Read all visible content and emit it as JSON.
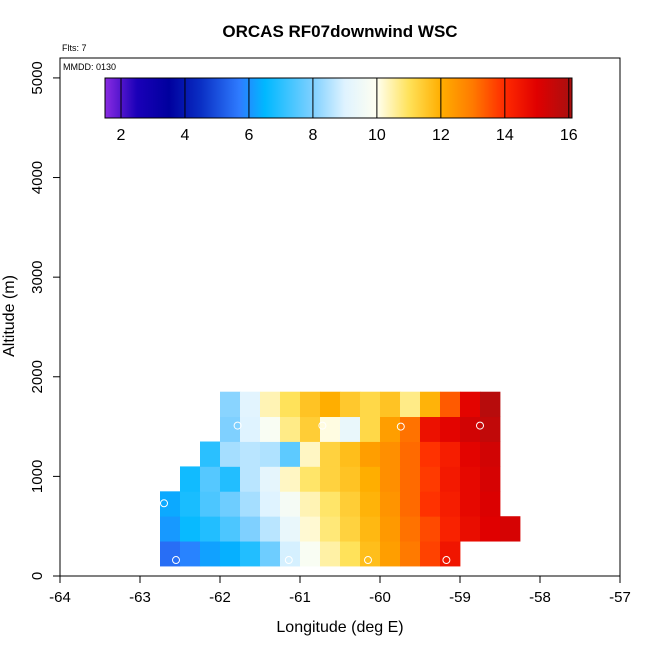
{
  "chart_data": {
    "type": "heatmap",
    "title": "ORCAS RF07downwind WSC",
    "annotations": {
      "flights": "Flts: 7",
      "date": "MMDD: 0130"
    },
    "xlabel": "Longitude (deg E)",
    "ylabel": "Altitude (m)",
    "xlim": [
      -64,
      -57
    ],
    "ylim": [
      0,
      5200
    ],
    "xticks": [
      -64,
      -63,
      -62,
      -61,
      -60,
      -59,
      -58,
      -57
    ],
    "yticks": [
      0,
      1000,
      2000,
      3000,
      4000,
      5000
    ],
    "colorbar": {
      "min": 1.5,
      "max": 16.1,
      "ticks": [
        2,
        4,
        6,
        8,
        10,
        12,
        14,
        16
      ],
      "stops": [
        {
          "v": 1.5,
          "c": "#8a2be2"
        },
        {
          "v": 2.5,
          "c": "#1a00b8"
        },
        {
          "v": 3.5,
          "c": "#00009e"
        },
        {
          "v": 4.5,
          "c": "#0a2fc4"
        },
        {
          "v": 5.7,
          "c": "#2e7bff"
        },
        {
          "v": 6.5,
          "c": "#00b8ff"
        },
        {
          "v": 8.0,
          "c": "#7fd0ff"
        },
        {
          "v": 9.0,
          "c": "#dff3ff"
        },
        {
          "v": 10.0,
          "c": "#fffff0"
        },
        {
          "v": 11.0,
          "c": "#ffe25a"
        },
        {
          "v": 12.0,
          "c": "#ffae00"
        },
        {
          "v": 13.0,
          "c": "#ff7a00"
        },
        {
          "v": 14.0,
          "c": "#ff2a00"
        },
        {
          "v": 15.0,
          "c": "#e00000"
        },
        {
          "v": 16.1,
          "c": "#a81010"
        }
      ]
    },
    "grid": {
      "x0": -62.75,
      "dx": 0.25,
      "y0": 100,
      "dy": 250
    },
    "cells": [
      {
        "x": -62.75,
        "y": 100,
        "v": 5.5
      },
      {
        "x": -62.5,
        "y": 100,
        "v": 5.8
      },
      {
        "x": -62.25,
        "y": 100,
        "v": 6.2
      },
      {
        "x": -62.0,
        "y": 100,
        "v": 6.4
      },
      {
        "x": -61.75,
        "y": 100,
        "v": 6.9
      },
      {
        "x": -61.5,
        "y": 100,
        "v": 7.8
      },
      {
        "x": -61.25,
        "y": 100,
        "v": 8.9
      },
      {
        "x": -61.0,
        "y": 100,
        "v": 9.8
      },
      {
        "x": -60.75,
        "y": 100,
        "v": 10.5
      },
      {
        "x": -60.5,
        "y": 100,
        "v": 11.0
      },
      {
        "x": -60.25,
        "y": 100,
        "v": 11.7
      },
      {
        "x": -60.0,
        "y": 100,
        "v": 12.3
      },
      {
        "x": -59.75,
        "y": 100,
        "v": 13.0
      },
      {
        "x": -59.5,
        "y": 100,
        "v": 13.7
      },
      {
        "x": -59.25,
        "y": 100,
        "v": 14.5
      },
      {
        "x": -62.75,
        "y": 350,
        "v": 6.1
      },
      {
        "x": -62.5,
        "y": 350,
        "v": 6.6
      },
      {
        "x": -62.25,
        "y": 350,
        "v": 6.9
      },
      {
        "x": -62.0,
        "y": 350,
        "v": 7.4
      },
      {
        "x": -61.75,
        "y": 350,
        "v": 8.0
      },
      {
        "x": -61.5,
        "y": 350,
        "v": 8.6
      },
      {
        "x": -61.25,
        "y": 350,
        "v": 9.3
      },
      {
        "x": -61.0,
        "y": 350,
        "v": 10.2
      },
      {
        "x": -60.75,
        "y": 350,
        "v": 10.8
      },
      {
        "x": -60.5,
        "y": 350,
        "v": 11.3
      },
      {
        "x": -60.25,
        "y": 350,
        "v": 11.8
      },
      {
        "x": -60.0,
        "y": 350,
        "v": 12.4
      },
      {
        "x": -59.75,
        "y": 350,
        "v": 13.1
      },
      {
        "x": -59.5,
        "y": 350,
        "v": 13.6
      },
      {
        "x": -59.25,
        "y": 350,
        "v": 14.2
      },
      {
        "x": -59.0,
        "y": 350,
        "v": 14.7
      },
      {
        "x": -58.75,
        "y": 350,
        "v": 15.0
      },
      {
        "x": -58.5,
        "y": 350,
        "v": 15.2
      },
      {
        "x": -62.75,
        "y": 600,
        "v": 6.3
      },
      {
        "x": -62.5,
        "y": 600,
        "v": 6.8
      },
      {
        "x": -62.25,
        "y": 600,
        "v": 7.4
      },
      {
        "x": -62.0,
        "y": 600,
        "v": 7.8
      },
      {
        "x": -61.75,
        "y": 600,
        "v": 8.4
      },
      {
        "x": -61.5,
        "y": 600,
        "v": 9.0
      },
      {
        "x": -61.25,
        "y": 600,
        "v": 9.7
      },
      {
        "x": -61.0,
        "y": 600,
        "v": 10.4
      },
      {
        "x": -60.75,
        "y": 600,
        "v": 10.9
      },
      {
        "x": -60.5,
        "y": 600,
        "v": 11.4
      },
      {
        "x": -60.25,
        "y": 600,
        "v": 11.9
      },
      {
        "x": -60.0,
        "y": 600,
        "v": 12.5
      },
      {
        "x": -59.75,
        "y": 600,
        "v": 13.2
      },
      {
        "x": -59.5,
        "y": 600,
        "v": 13.9
      },
      {
        "x": -59.25,
        "y": 600,
        "v": 14.3
      },
      {
        "x": -59.0,
        "y": 600,
        "v": 14.8
      },
      {
        "x": -58.75,
        "y": 600,
        "v": 15.1
      },
      {
        "x": -62.5,
        "y": 850,
        "v": 6.7
      },
      {
        "x": -62.25,
        "y": 850,
        "v": 7.5
      },
      {
        "x": -62.0,
        "y": 850,
        "v": 6.9
      },
      {
        "x": -61.75,
        "y": 850,
        "v": 8.6
      },
      {
        "x": -61.5,
        "y": 850,
        "v": 9.2
      },
      {
        "x": -61.25,
        "y": 850,
        "v": 10.3
      },
      {
        "x": -61.0,
        "y": 850,
        "v": 10.9
      },
      {
        "x": -60.75,
        "y": 850,
        "v": 11.3
      },
      {
        "x": -60.5,
        "y": 850,
        "v": 11.6
      },
      {
        "x": -60.25,
        "y": 850,
        "v": 12.0
      },
      {
        "x": -60.0,
        "y": 850,
        "v": 12.6
      },
      {
        "x": -59.75,
        "y": 850,
        "v": 13.2
      },
      {
        "x": -59.5,
        "y": 850,
        "v": 13.8
      },
      {
        "x": -59.25,
        "y": 850,
        "v": 14.4
      },
      {
        "x": -59.0,
        "y": 850,
        "v": 14.8
      },
      {
        "x": -58.75,
        "y": 850,
        "v": 15.2
      },
      {
        "x": -62.25,
        "y": 1100,
        "v": 7.0
      },
      {
        "x": -62.0,
        "y": 1100,
        "v": 8.4
      },
      {
        "x": -61.75,
        "y": 1100,
        "v": 8.6
      },
      {
        "x": -61.5,
        "y": 1100,
        "v": 8.5
      },
      {
        "x": -61.25,
        "y": 1100,
        "v": 7.6
      },
      {
        "x": -61.0,
        "y": 1100,
        "v": 10.3
      },
      {
        "x": -60.75,
        "y": 1100,
        "v": 11.3
      },
      {
        "x": -60.5,
        "y": 1100,
        "v": 11.7
      },
      {
        "x": -60.25,
        "y": 1100,
        "v": 12.3
      },
      {
        "x": -60.0,
        "y": 1100,
        "v": 12.6
      },
      {
        "x": -59.75,
        "y": 1100,
        "v": 13.2
      },
      {
        "x": -59.5,
        "y": 1100,
        "v": 13.9
      },
      {
        "x": -59.25,
        "y": 1100,
        "v": 14.3
      },
      {
        "x": -59.0,
        "y": 1100,
        "v": 14.9
      },
      {
        "x": -58.75,
        "y": 1100,
        "v": 15.3
      },
      {
        "x": -62.0,
        "y": 1350,
        "v": 8.0
      },
      {
        "x": -61.75,
        "y": 1350,
        "v": 9.0
      },
      {
        "x": -61.5,
        "y": 1350,
        "v": 9.8
      },
      {
        "x": -61.25,
        "y": 1350,
        "v": 10.7
      },
      {
        "x": -61.0,
        "y": 1350,
        "v": 11.4
      },
      {
        "x": -60.75,
        "y": 1350,
        "v": 10.1
      },
      {
        "x": -60.5,
        "y": 1350,
        "v": 9.3
      },
      {
        "x": -60.25,
        "y": 1350,
        "v": 11.2
      },
      {
        "x": -60.0,
        "y": 1350,
        "v": 12.3
      },
      {
        "x": -59.75,
        "y": 1350,
        "v": 13.1
      },
      {
        "x": -59.5,
        "y": 1350,
        "v": 14.6
      },
      {
        "x": -59.25,
        "y": 1350,
        "v": 14.9
      },
      {
        "x": -59.0,
        "y": 1350,
        "v": 15.3
      },
      {
        "x": -58.75,
        "y": 1350,
        "v": 15.6
      },
      {
        "x": -62.0,
        "y": 1600,
        "v": 8.1
      },
      {
        "x": -61.75,
        "y": 1600,
        "v": 9.1
      },
      {
        "x": -61.5,
        "y": 1600,
        "v": 10.4
      },
      {
        "x": -61.25,
        "y": 1600,
        "v": 11.0
      },
      {
        "x": -61.0,
        "y": 1600,
        "v": 11.6
      },
      {
        "x": -60.75,
        "y": 1600,
        "v": 12.0
      },
      {
        "x": -60.5,
        "y": 1600,
        "v": 11.5
      },
      {
        "x": -60.25,
        "y": 1600,
        "v": 11.2
      },
      {
        "x": -60.0,
        "y": 1600,
        "v": 11.6
      },
      {
        "x": -59.75,
        "y": 1600,
        "v": 10.7
      },
      {
        "x": -59.5,
        "y": 1600,
        "v": 11.9
      },
      {
        "x": -59.25,
        "y": 1600,
        "v": 13.4
      },
      {
        "x": -59.0,
        "y": 1600,
        "v": 14.9
      },
      {
        "x": -58.75,
        "y": 1600,
        "v": 15.8
      }
    ],
    "markers": [
      {
        "x": -62.7,
        "y": 730
      },
      {
        "x": -62.55,
        "y": 160
      },
      {
        "x": -61.78,
        "y": 1510
      },
      {
        "x": -61.14,
        "y": 160
      },
      {
        "x": -60.72,
        "y": 1510
      },
      {
        "x": -60.15,
        "y": 160
      },
      {
        "x": -59.74,
        "y": 1500
      },
      {
        "x": -59.17,
        "y": 160
      },
      {
        "x": -58.75,
        "y": 1510
      },
      {
        "x": -58.32,
        "y": 300
      }
    ]
  }
}
